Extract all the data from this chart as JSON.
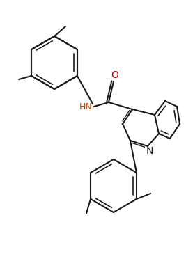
{
  "figsize": [
    2.67,
    3.85
  ],
  "dpi": 100,
  "bg": "#ffffff",
  "bond_color": "#1a1a1a",
  "N_color": "#0000cd",
  "O_color": "#cc0000",
  "NH_color": "#cc4400",
  "lw": 1.5,
  "lw2": 1.0,
  "xlim": [
    0,
    267
  ],
  "ylim": [
    0,
    385
  ]
}
